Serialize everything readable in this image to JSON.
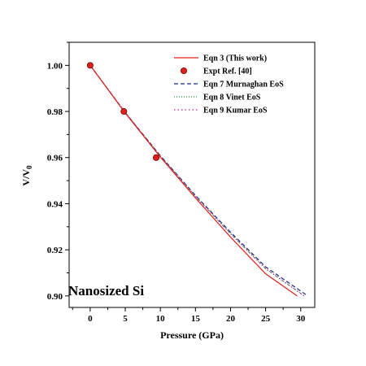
{
  "chart_data": {
    "type": "line",
    "title": "",
    "xlabel": "Pressure (GPa)",
    "ylabel_main": "V/V",
    "ylabel_sub": "0",
    "xlim": [
      -3,
      32
    ],
    "ylim": [
      0.895,
      1.01
    ],
    "x_ticks": [
      0,
      5,
      10,
      15,
      20,
      25,
      30
    ],
    "x_tick_labels": [
      "0",
      "5",
      "10",
      "15",
      "20",
      "25",
      "30"
    ],
    "y_ticks": [
      0.9,
      0.92,
      0.94,
      0.96,
      0.98,
      1.0
    ],
    "y_tick_labels": [
      "0.90",
      "0.92",
      "0.94",
      "0.96",
      "0.98",
      "1.00"
    ],
    "grid": false,
    "legend_position": "top-right",
    "annotation": "Nanosized Si",
    "series": [
      {
        "name": "Eqn 3 (This work)",
        "kind": "line",
        "style": "solid",
        "color": "#e0201b",
        "x": [
          0,
          5,
          10,
          15,
          20,
          25,
          29.5
        ],
        "y": [
          1.0,
          0.9793,
          0.9602,
          0.9425,
          0.9255,
          0.9096,
          0.9
        ]
      },
      {
        "name": "Expt  Ref. [40]",
        "kind": "marker",
        "color": "#e0201b",
        "x": [
          0,
          4.8,
          9.4
        ],
        "y": [
          1.0,
          0.98,
          0.96
        ]
      },
      {
        "name": "Eqn 7 Murnaghan EoS",
        "kind": "line",
        "style": "dashed",
        "color": "#1a2a80",
        "x": [
          0,
          5,
          10,
          15,
          20,
          25,
          31
        ],
        "y": [
          1.0,
          0.9795,
          0.9608,
          0.9436,
          0.9276,
          0.9126,
          0.9
        ]
      },
      {
        "name": "Eqn 8 Vinet EoS",
        "kind": "line",
        "style": "dotted",
        "color": "#1a8a2a",
        "x": [
          0,
          5,
          10,
          15,
          20,
          25,
          30.5
        ],
        "y": [
          1.0,
          0.9795,
          0.9606,
          0.9432,
          0.927,
          0.9118,
          0.9
        ]
      },
      {
        "name": "Eqn 9 Kumar EoS",
        "kind": "line",
        "style": "dashdot",
        "color": "#c0208a",
        "x": [
          0,
          5,
          10,
          15,
          20,
          25,
          30.5
        ],
        "y": [
          1.0,
          0.9795,
          0.9606,
          0.9432,
          0.927,
          0.9118,
          0.9
        ]
      }
    ]
  }
}
